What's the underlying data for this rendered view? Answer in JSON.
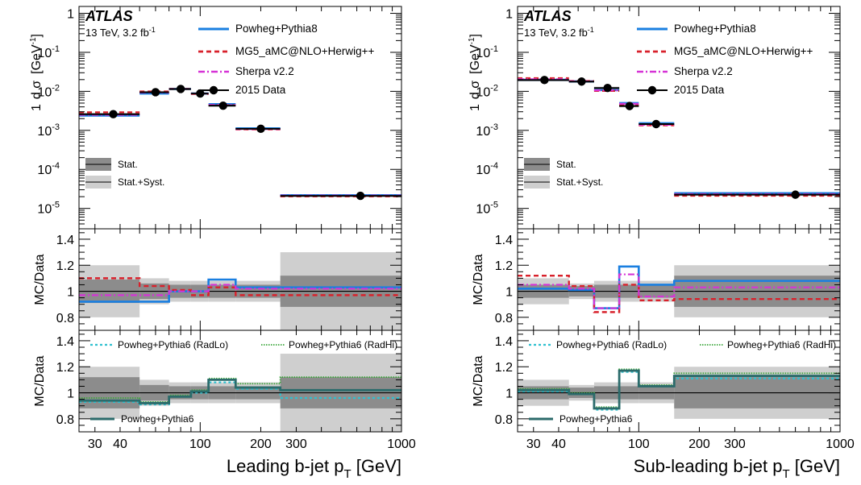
{
  "style": {
    "colors": {
      "powheg8": "#1a7fe0",
      "mg5": "#d8212b",
      "sherpa": "#d633d6",
      "data": "#000000",
      "radlo": "#2fc0cf",
      "radhi": "#3aa63a",
      "powheg6": "#2b6b6b",
      "stat": "#8c8c8c",
      "statsyst": "#cfcfcf"
    }
  },
  "chart_data": [
    {
      "type": "line",
      "panel": "left",
      "atlas_label": "ATLAS",
      "info_prefix": "13 TeV, 3.2 fb",
      "info_sup": "-1",
      "xlabel_main": "Leading b-jet p",
      "xlabel_sub": "T",
      "xlabel_unit": " [GeV]",
      "xlim": [
        25,
        1000
      ],
      "x_scale": "log",
      "x_ticks": [
        "30",
        "40",
        "100",
        "200",
        "300",
        "1000"
      ],
      "bin_edges": [
        25,
        50,
        70,
        90,
        110,
        150,
        250,
        1000
      ],
      "top": {
        "ylabel_prefix": "1",
        "ylabel_frac_num": "d σ",
        "ylabel_unit": "[GeV",
        "ylabel_sup": "-1",
        "y_scale": "log",
        "ylim": [
          3e-06,
          1.5
        ],
        "y_ticks": [
          "1",
          "10",
          "10",
          "10",
          "10",
          "10"
        ],
        "y_tick_exps": [
          "",
          "-1",
          "-2",
          "-3",
          "-4",
          "-5"
        ],
        "legend": [
          "Powheg+Pythia8",
          "MG5_aMC@NLO+Herwig++",
          "Sherpa v2.2",
          "2015 Data"
        ],
        "band_legend": [
          "Stat.",
          "Stat.+Syst."
        ],
        "data_x": [
          37,
          60,
          80,
          100,
          130,
          200,
          625
        ],
        "data_y": [
          0.0026,
          0.0095,
          0.0115,
          0.0088,
          0.0043,
          0.0011,
          2.1e-05
        ],
        "series": [
          {
            "name": "Powheg+Pythia8",
            "values": [
              0.0024,
              0.0088,
              0.0115,
              0.0088,
              0.0047,
              0.00113,
              2.18e-05
            ]
          },
          {
            "name": "MG5_aMC@NLO+Herwig++",
            "values": [
              0.0029,
              0.0099,
              0.0115,
              0.0086,
              0.0044,
              0.00106,
              2.04e-05
            ]
          },
          {
            "name": "Sherpa v2.2",
            "values": [
              0.0025,
              0.0093,
              0.0115,
              0.0088,
              0.0045,
              0.00108,
              2.13e-05
            ]
          }
        ]
      },
      "mid": {
        "ylabel": "MC/Data",
        "ylim": [
          0.7,
          1.48
        ],
        "y_ticks": [
          "0.8",
          "1",
          "1.2",
          "1.4"
        ],
        "stat_band": [
          0.09,
          0.06,
          0.05,
          0.05,
          0.05,
          0.05,
          0.12
        ],
        "statsyst_band": [
          0.2,
          0.1,
          0.08,
          0.08,
          0.08,
          0.08,
          0.3
        ],
        "series": [
          {
            "name": "Powheg+Pythia8",
            "values": [
              0.92,
              0.92,
              1.0,
              1.0,
              1.09,
              1.03,
              1.03
            ]
          },
          {
            "name": "MG5_aMC@NLO+Herwig++",
            "values": [
              1.1,
              1.04,
              1.01,
              0.97,
              1.03,
              0.97,
              0.97
            ]
          },
          {
            "name": "Sherpa v2.2",
            "values": [
              0.97,
              0.97,
              1.0,
              1.0,
              1.05,
              1.02,
              1.02
            ]
          }
        ]
      },
      "bot": {
        "ylabel": "MC/Data",
        "ylim": [
          0.7,
          1.48
        ],
        "y_ticks": [
          "0.8",
          "1",
          "1.2",
          "1.4"
        ],
        "legend": [
          "Powheg+Pythia6 (RadLo)",
          "Powheg+Pythia6 (RadHi)",
          "Powheg+Pythia6"
        ],
        "stat_band": [
          0.12,
          0.06,
          0.05,
          0.05,
          0.05,
          0.05,
          0.12
        ],
        "statsyst_band": [
          0.2,
          0.1,
          0.08,
          0.08,
          0.08,
          0.08,
          0.3
        ],
        "series": [
          {
            "name": "Powheg+Pythia6 (RadLo)",
            "values": [
              0.93,
              0.91,
              0.97,
              1.0,
              1.08,
              1.03,
              0.96
            ]
          },
          {
            "name": "Powheg+Pythia6 (RadHi)",
            "values": [
              0.96,
              0.93,
              0.98,
              1.02,
              1.11,
              1.07,
              1.12
            ]
          },
          {
            "name": "Powheg+Pythia6",
            "values": [
              0.94,
              0.92,
              0.97,
              1.01,
              1.1,
              1.04,
              1.02
            ]
          }
        ]
      }
    },
    {
      "type": "line",
      "panel": "right",
      "atlas_label": "ATLAS",
      "info_prefix": "13 TeV, 3.2 fb",
      "info_sup": "-1",
      "xlabel_main": "Sub-leading b-jet p",
      "xlabel_sub": "T",
      "xlabel_unit": " [GeV]",
      "xlim": [
        25,
        1000
      ],
      "x_scale": "log",
      "x_ticks": [
        "30",
        "40",
        "100",
        "200",
        "300",
        "1000"
      ],
      "bin_edges": [
        25,
        45,
        60,
        80,
        100,
        150,
        1000
      ],
      "top": {
        "ylabel_prefix": "1",
        "ylabel_frac_num": "d σ",
        "ylabel_unit": "[GeV",
        "ylabel_sup": "-1",
        "y_scale": "log",
        "ylim": [
          3e-06,
          1.5
        ],
        "y_ticks": [
          "1",
          "10",
          "10",
          "10",
          "10",
          "10"
        ],
        "y_tick_exps": [
          "",
          "-1",
          "-2",
          "-3",
          "-4",
          "-5"
        ],
        "legend": [
          "Powheg+Pythia8",
          "MG5_aMC@NLO+Herwig++",
          "Sherpa v2.2",
          "2015 Data"
        ],
        "band_legend": [
          "Stat.",
          "Stat.+Syst."
        ],
        "data_x": [
          34,
          52,
          70,
          90,
          122,
          600
        ],
        "data_y": [
          0.0195,
          0.0178,
          0.0122,
          0.0042,
          0.00145,
          2.25e-05
        ],
        "series": [
          {
            "name": "Powheg+Pythia8",
            "values": [
              0.0198,
              0.018,
              0.0108,
              0.005,
              0.00153,
              2.45e-05
            ]
          },
          {
            "name": "MG5_aMC@NLO+Herwig++",
            "values": [
              0.0217,
              0.0184,
              0.0103,
              0.0044,
              0.00135,
              2.11e-05
            ]
          },
          {
            "name": "Sherpa v2.2",
            "values": [
              0.0205,
              0.0182,
              0.0106,
              0.0048,
              0.00139,
              2.32e-05
            ]
          }
        ]
      },
      "mid": {
        "ylabel": "MC/Data",
        "ylim": [
          0.7,
          1.48
        ],
        "y_ticks": [
          "0.8",
          "1",
          "1.2",
          "1.4"
        ],
        "stat_band": [
          0.05,
          0.04,
          0.05,
          0.05,
          0.05,
          0.12
        ],
        "statsyst_band": [
          0.1,
          0.06,
          0.08,
          0.08,
          0.08,
          0.2
        ],
        "series": [
          {
            "name": "Powheg+Pythia8",
            "values": [
              1.02,
              1.01,
              0.87,
              1.19,
              1.05,
              1.08
            ]
          },
          {
            "name": "MG5_aMC@NLO+Herwig++",
            "values": [
              1.12,
              1.04,
              0.84,
              1.05,
              0.93,
              0.94
            ]
          },
          {
            "name": "Sherpa v2.2",
            "values": [
              1.05,
              1.02,
              0.87,
              1.13,
              0.96,
              1.03
            ]
          }
        ]
      },
      "bot": {
        "ylabel": "MC/Data",
        "ylim": [
          0.7,
          1.48
        ],
        "y_ticks": [
          "0.8",
          "1",
          "1.2",
          "1.4"
        ],
        "legend": [
          "Powheg+Pythia6 (RadLo)",
          "Powheg+Pythia6 (RadHi)",
          "Powheg+Pythia6"
        ],
        "stat_band": [
          0.05,
          0.04,
          0.05,
          0.05,
          0.05,
          0.12
        ],
        "statsyst_band": [
          0.1,
          0.06,
          0.08,
          0.08,
          0.08,
          0.2
        ],
        "series": [
          {
            "name": "Powheg+Pythia6 (RadLo)",
            "values": [
              1.01,
              0.99,
              0.87,
              1.16,
              1.05,
              1.11
            ]
          },
          {
            "name": "Powheg+Pythia6 (RadHi)",
            "values": [
              1.03,
              1.0,
              0.89,
              1.18,
              1.06,
              1.15
            ]
          },
          {
            "name": "Powheg+Pythia6",
            "values": [
              1.02,
              0.99,
              0.88,
              1.17,
              1.05,
              1.13
            ]
          }
        ]
      }
    }
  ]
}
